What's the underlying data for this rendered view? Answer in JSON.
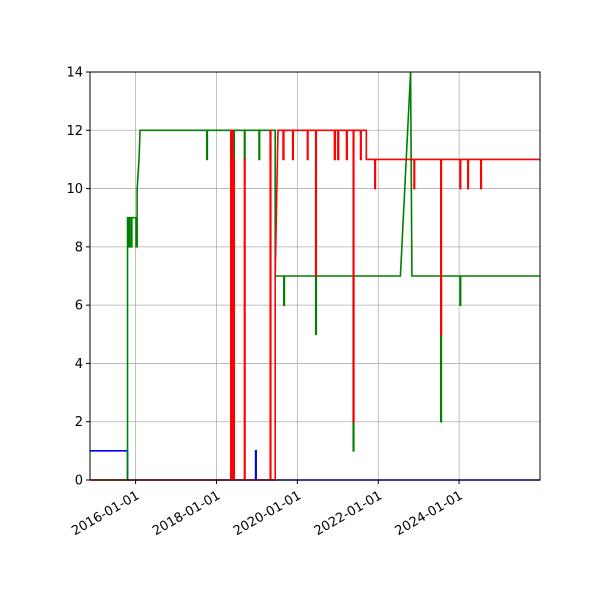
{
  "chart_data": {
    "type": "line",
    "title": "",
    "xlabel": "",
    "ylabel": "",
    "xlim": [
      "2014-11-15",
      "2026-01-01"
    ],
    "ylim": [
      0,
      14
    ],
    "x_ticks": [
      "2016-01-01",
      "2018-01-01",
      "2020-01-01",
      "2022-01-01",
      "2024-01-01"
    ],
    "y_ticks": [
      0,
      2,
      4,
      6,
      8,
      10,
      12,
      14
    ],
    "grid": true,
    "legend": "none",
    "series": [
      {
        "color": "#0000ff",
        "points": [
          [
            "2014-11-15",
            1
          ],
          [
            "2015-10-20",
            1
          ],
          [
            "2015-10-20",
            0
          ],
          [
            "2018-12-20",
            0
          ],
          [
            "2018-12-20",
            1
          ],
          [
            "2018-12-25",
            1
          ],
          [
            "2018-12-25",
            0
          ],
          [
            "2026-01-01",
            0
          ]
        ]
      },
      {
        "color": "#008000",
        "points": [
          [
            "2014-11-15",
            0
          ],
          [
            "2015-10-20",
            0
          ],
          [
            "2015-10-20",
            9
          ],
          [
            "2015-10-28",
            9
          ],
          [
            "2015-10-28",
            8
          ],
          [
            "2015-11-05",
            8
          ],
          [
            "2015-11-05",
            9
          ],
          [
            "2015-11-20",
            9
          ],
          [
            "2015-11-20",
            8
          ],
          [
            "2015-11-28",
            8
          ],
          [
            "2015-11-28",
            9
          ],
          [
            "2016-01-05",
            9
          ],
          [
            "2016-01-05",
            8
          ],
          [
            "2016-01-15",
            8
          ],
          [
            "2016-01-15",
            10
          ],
          [
            "2016-02-01",
            11
          ],
          [
            "2016-02-10",
            12
          ],
          [
            "2017-10-05",
            12
          ],
          [
            "2017-10-05",
            11
          ],
          [
            "2017-10-10",
            11
          ],
          [
            "2017-10-10",
            12
          ],
          [
            "2018-05-10",
            12
          ],
          [
            "2018-05-10",
            11
          ],
          [
            "2018-05-16",
            11
          ],
          [
            "2018-05-16",
            12
          ],
          [
            "2018-05-22",
            12
          ],
          [
            "2018-05-22",
            11
          ],
          [
            "2018-05-28",
            11
          ],
          [
            "2018-05-28",
            12
          ],
          [
            "2018-06-05",
            12
          ],
          [
            "2018-06-05",
            11
          ],
          [
            "2018-06-10",
            11
          ],
          [
            "2018-06-10",
            12
          ],
          [
            "2018-09-10",
            12
          ],
          [
            "2018-09-10",
            11
          ],
          [
            "2018-09-15",
            11
          ],
          [
            "2018-09-15",
            12
          ],
          [
            "2019-01-20",
            12
          ],
          [
            "2019-01-20",
            11
          ],
          [
            "2019-01-25",
            11
          ],
          [
            "2019-01-25",
            12
          ],
          [
            "2019-05-01",
            12
          ],
          [
            "2019-05-01",
            11
          ],
          [
            "2019-05-06",
            11
          ],
          [
            "2019-05-06",
            12
          ],
          [
            "2019-06-15",
            12
          ],
          [
            "2019-06-15",
            7
          ],
          [
            "2019-09-01",
            7
          ],
          [
            "2019-09-01",
            6
          ],
          [
            "2019-09-06",
            6
          ],
          [
            "2019-09-06",
            7
          ],
          [
            "2020-06-15",
            7
          ],
          [
            "2020-06-15",
            5
          ],
          [
            "2020-06-20",
            5
          ],
          [
            "2020-06-20",
            7
          ],
          [
            "2021-05-20",
            7
          ],
          [
            "2021-05-20",
            1
          ],
          [
            "2021-05-25",
            1
          ],
          [
            "2021-05-25",
            7
          ],
          [
            "2022-07-20",
            7
          ],
          [
            "2022-10-20",
            14
          ],
          [
            "2022-11-01",
            7
          ],
          [
            "2023-07-20",
            7
          ],
          [
            "2023-07-20",
            2
          ],
          [
            "2023-07-25",
            2
          ],
          [
            "2023-07-25",
            7
          ],
          [
            "2024-01-10",
            7
          ],
          [
            "2024-01-10",
            6
          ],
          [
            "2024-01-15",
            6
          ],
          [
            "2024-01-15",
            7
          ],
          [
            "2026-01-01",
            7
          ]
        ]
      },
      {
        "color": "#ff0000",
        "points": [
          [
            "2014-11-15",
            0
          ],
          [
            "2018-05-10",
            0
          ],
          [
            "2018-05-10",
            12
          ],
          [
            "2018-05-16",
            12
          ],
          [
            "2018-05-16",
            0
          ],
          [
            "2018-05-22",
            0
          ],
          [
            "2018-05-22",
            12
          ],
          [
            "2018-05-28",
            12
          ],
          [
            "2018-05-28",
            0
          ],
          [
            "2018-06-05",
            0
          ],
          [
            "2018-06-05",
            11
          ],
          [
            "2018-06-10",
            11
          ],
          [
            "2018-06-10",
            0
          ],
          [
            "2018-09-10",
            0
          ],
          [
            "2018-09-10",
            11
          ],
          [
            "2018-09-15",
            11
          ],
          [
            "2018-09-15",
            0
          ],
          [
            "2019-05-01",
            0
          ],
          [
            "2019-05-01",
            12
          ],
          [
            "2019-05-06",
            12
          ],
          [
            "2019-05-06",
            0
          ],
          [
            "2019-06-15",
            0
          ],
          [
            "2019-06-15",
            7
          ],
          [
            "2019-07-10",
            12
          ],
          [
            "2019-08-25",
            12
          ],
          [
            "2019-08-25",
            11
          ],
          [
            "2019-09-01",
            11
          ],
          [
            "2019-09-01",
            12
          ],
          [
            "2019-11-20",
            12
          ],
          [
            "2019-11-20",
            11
          ],
          [
            "2019-11-25",
            11
          ],
          [
            "2019-11-25",
            12
          ],
          [
            "2020-04-01",
            12
          ],
          [
            "2020-04-01",
            11
          ],
          [
            "2020-04-06",
            11
          ],
          [
            "2020-04-06",
            12
          ],
          [
            "2020-06-15",
            12
          ],
          [
            "2020-06-15",
            7
          ],
          [
            "2020-06-20",
            7
          ],
          [
            "2020-06-20",
            12
          ],
          [
            "2020-12-01",
            12
          ],
          [
            "2020-12-01",
            11
          ],
          [
            "2020-12-08",
            11
          ],
          [
            "2020-12-08",
            12
          ],
          [
            "2021-01-01",
            12
          ],
          [
            "2021-01-01",
            11
          ],
          [
            "2021-01-08",
            11
          ],
          [
            "2021-01-08",
            12
          ],
          [
            "2021-03-20",
            12
          ],
          [
            "2021-03-20",
            11
          ],
          [
            "2021-03-26",
            11
          ],
          [
            "2021-03-26",
            12
          ],
          [
            "2021-05-20",
            12
          ],
          [
            "2021-05-20",
            2
          ],
          [
            "2021-05-25",
            2
          ],
          [
            "2021-05-25",
            12
          ],
          [
            "2021-07-25",
            12
          ],
          [
            "2021-07-25",
            11
          ],
          [
            "2021-07-30",
            11
          ],
          [
            "2021-07-30",
            12
          ],
          [
            "2021-09-15",
            12
          ],
          [
            "2021-09-15",
            11
          ],
          [
            "2021-12-01",
            11
          ],
          [
            "2021-12-01",
            10
          ],
          [
            "2021-12-06",
            10
          ],
          [
            "2021-12-06",
            11
          ],
          [
            "2022-11-20",
            11
          ],
          [
            "2022-11-20",
            10
          ],
          [
            "2022-11-25",
            10
          ],
          [
            "2022-11-25",
            11
          ],
          [
            "2023-07-20",
            11
          ],
          [
            "2023-07-20",
            5
          ],
          [
            "2023-07-25",
            5
          ],
          [
            "2023-07-25",
            11
          ],
          [
            "2024-01-10",
            11
          ],
          [
            "2024-01-10",
            10
          ],
          [
            "2024-01-15",
            10
          ],
          [
            "2024-01-15",
            11
          ],
          [
            "2024-03-20",
            11
          ],
          [
            "2024-03-20",
            10
          ],
          [
            "2024-03-25",
            10
          ],
          [
            "2024-03-25",
            11
          ],
          [
            "2024-07-15",
            11
          ],
          [
            "2024-07-15",
            10
          ],
          [
            "2024-07-20",
            10
          ],
          [
            "2024-07-20",
            11
          ],
          [
            "2026-01-01",
            11
          ]
        ]
      }
    ]
  }
}
